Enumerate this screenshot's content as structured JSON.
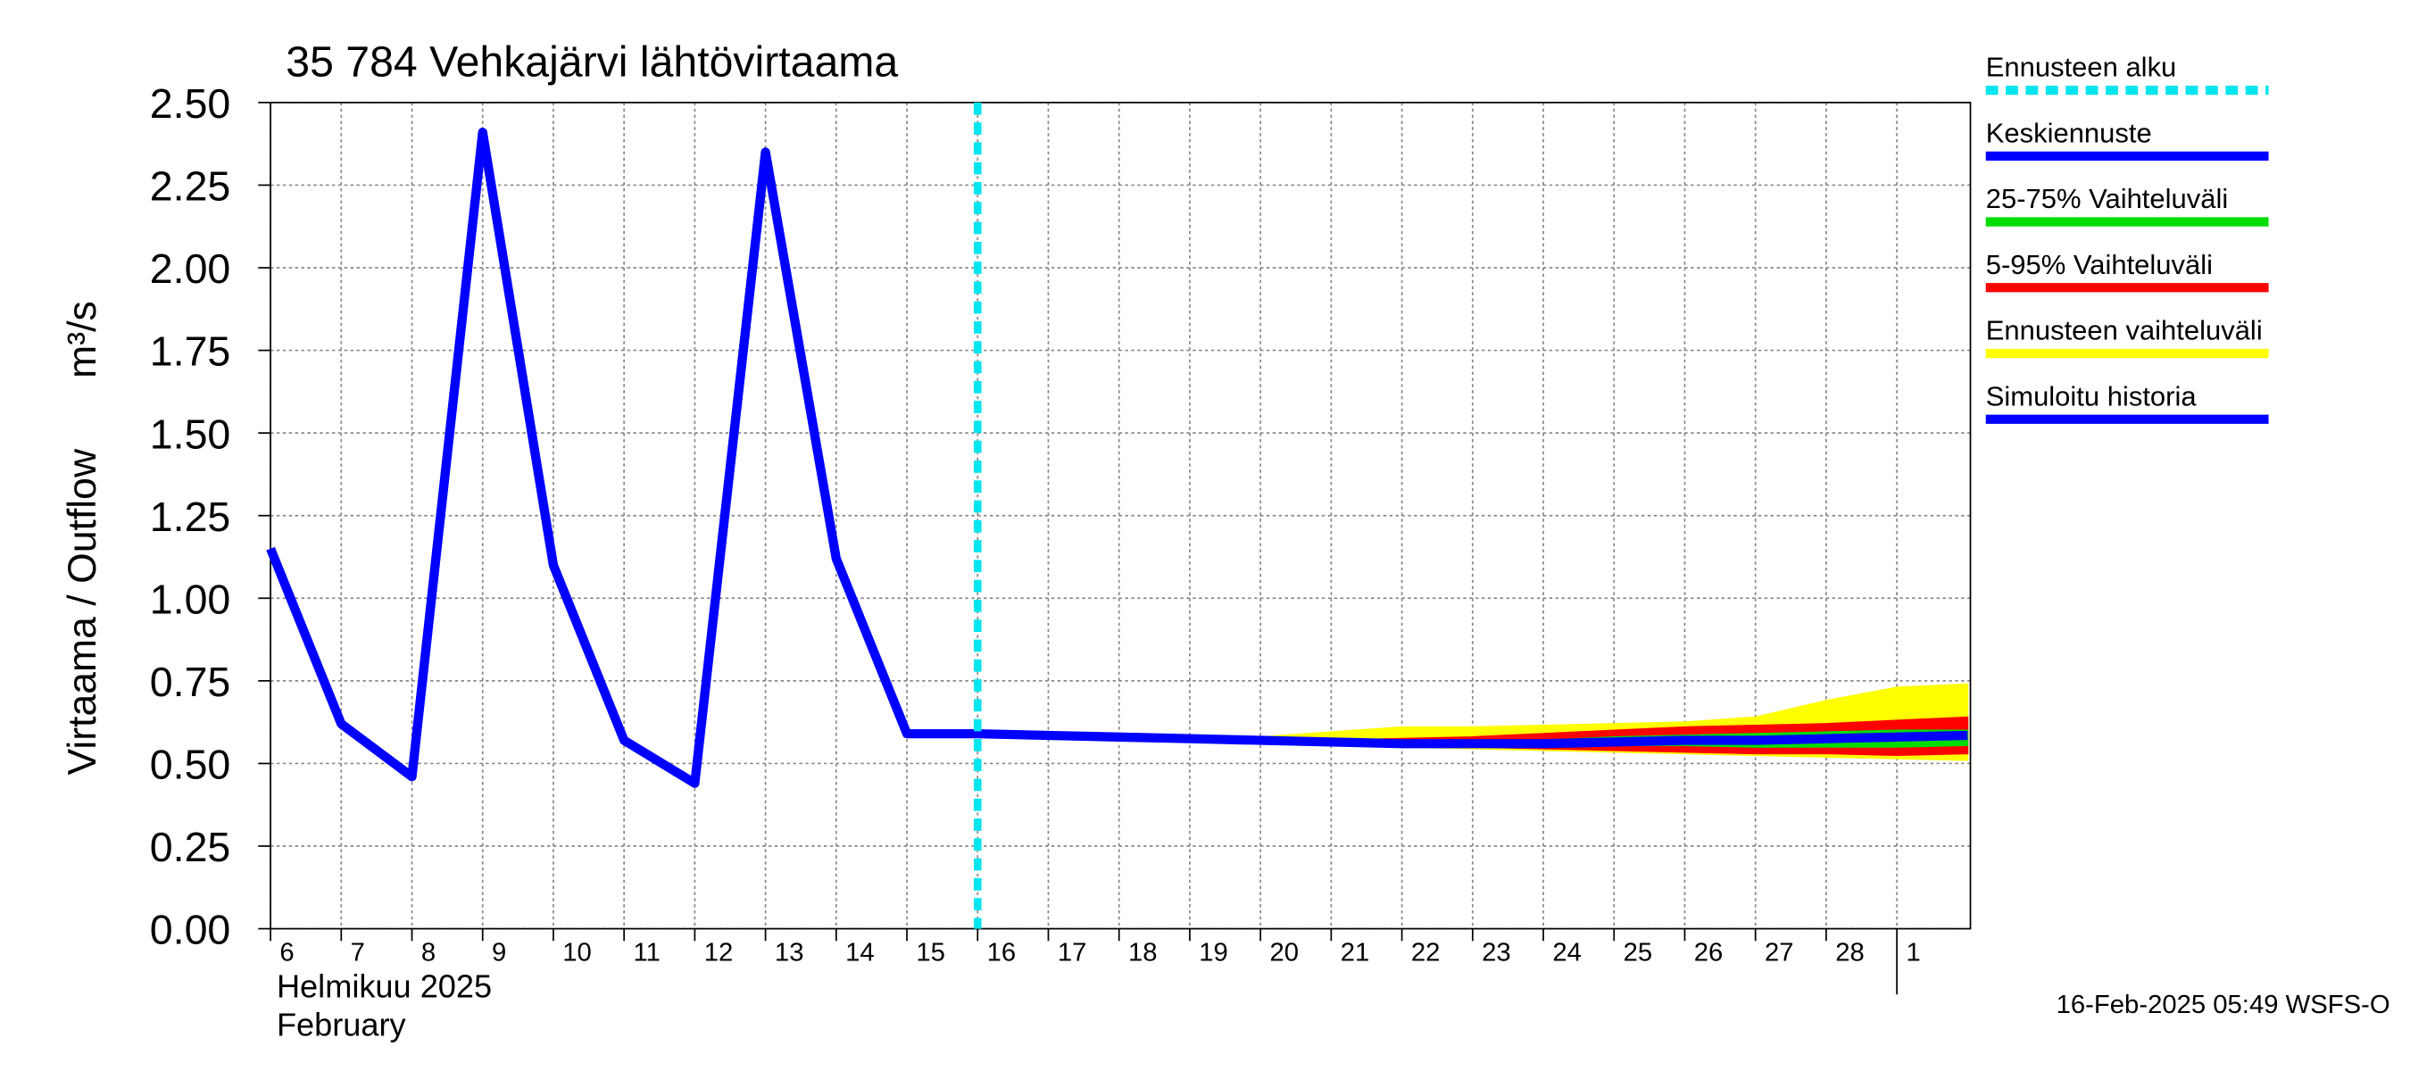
{
  "chart_data": {
    "type": "line",
    "title": "35 784 Vehkajärvi lähtövirtaama",
    "ylabel": "Virtaama / Outflow",
    "yunit": "m³/s",
    "month_label": "Helmikuu  2025",
    "month_label_en": "February",
    "footer": "16-Feb-2025 05:49 WSFS-O",
    "x": [
      "2025-02-06",
      "2025-02-07",
      "2025-02-08",
      "2025-02-09",
      "2025-02-10",
      "2025-02-11",
      "2025-02-12",
      "2025-02-13",
      "2025-02-14",
      "2025-02-15",
      "2025-02-16",
      "2025-02-17",
      "2025-02-18",
      "2025-02-19",
      "2025-02-20",
      "2025-02-21",
      "2025-02-22",
      "2025-02-23",
      "2025-02-24",
      "2025-02-25",
      "2025-02-26",
      "2025-02-27",
      "2025-02-28",
      "2025-03-01",
      "2025-03-02"
    ],
    "xticks": [
      {
        "value": "2025-02-06",
        "label": "6"
      },
      {
        "value": "2025-02-07",
        "label": "7"
      },
      {
        "value": "2025-02-08",
        "label": "8"
      },
      {
        "value": "2025-02-09",
        "label": "9"
      },
      {
        "value": "2025-02-10",
        "label": "10"
      },
      {
        "value": "2025-02-11",
        "label": "11"
      },
      {
        "value": "2025-02-12",
        "label": "12"
      },
      {
        "value": "2025-02-13",
        "label": "13"
      },
      {
        "value": "2025-02-14",
        "label": "14"
      },
      {
        "value": "2025-02-15",
        "label": "15"
      },
      {
        "value": "2025-02-16",
        "label": "16"
      },
      {
        "value": "2025-02-17",
        "label": "17"
      },
      {
        "value": "2025-02-18",
        "label": "18"
      },
      {
        "value": "2025-02-19",
        "label": "19"
      },
      {
        "value": "2025-02-20",
        "label": "20"
      },
      {
        "value": "2025-02-21",
        "label": "21"
      },
      {
        "value": "2025-02-22",
        "label": "22"
      },
      {
        "value": "2025-02-23",
        "label": "23"
      },
      {
        "value": "2025-02-24",
        "label": "24"
      },
      {
        "value": "2025-02-25",
        "label": "25"
      },
      {
        "value": "2025-02-26",
        "label": "26"
      },
      {
        "value": "2025-02-27",
        "label": "27"
      },
      {
        "value": "2025-02-28",
        "label": "28"
      },
      {
        "value": "2025-03-01",
        "label": "1"
      }
    ],
    "ylim": [
      0,
      2.5
    ],
    "yticks": [
      {
        "value": 0,
        "label": "0.00"
      },
      0.25,
      {
        "value": 0.5,
        "label": "0.50"
      },
      0.75,
      {
        "value": 1,
        "label": "1.00"
      },
      1.25,
      {
        "value": 1.5,
        "label": "1.50"
      },
      1.75,
      {
        "value": 2,
        "label": "2.00"
      },
      2.25,
      {
        "value": 2.5,
        "label": "2.50"
      }
    ],
    "grid": true,
    "forecast_start": {
      "name": "Ennusteen alku",
      "x": "2025-02-16",
      "color": "#00e5ee"
    },
    "series": [
      {
        "name": "Keskiennuste",
        "color": "#0000ff",
        "values": [
          null,
          null,
          null,
          null,
          null,
          null,
          null,
          null,
          null,
          null,
          0.59,
          0.585,
          0.58,
          0.575,
          0.57,
          0.565,
          0.56,
          0.56,
          0.56,
          0.565,
          0.57,
          0.57,
          0.575,
          0.58,
          0.585
        ]
      },
      {
        "name": "25-75% Vaihteluväli",
        "color": "#00dd00",
        "band": true,
        "high": [
          null,
          null,
          null,
          null,
          null,
          null,
          null,
          null,
          null,
          null,
          0.59,
          0.585,
          0.58,
          0.575,
          0.57,
          0.565,
          0.565,
          0.565,
          0.57,
          0.58,
          0.585,
          0.59,
          0.595,
          0.6,
          0.6
        ],
        "low": [
          null,
          null,
          null,
          null,
          null,
          null,
          null,
          null,
          null,
          null,
          0.59,
          0.585,
          0.58,
          0.575,
          0.57,
          0.56,
          0.555,
          0.555,
          0.555,
          0.555,
          0.555,
          0.55,
          0.55,
          0.55,
          0.555
        ]
      },
      {
        "name": "5-95% Vaihteluväli",
        "color": "#ff0000",
        "band": true,
        "high": [
          null,
          null,
          null,
          null,
          null,
          null,
          null,
          null,
          null,
          null,
          0.59,
          0.585,
          0.58,
          0.575,
          0.57,
          0.57,
          0.575,
          0.58,
          0.59,
          0.6,
          0.61,
          0.615,
          0.62,
          0.63,
          0.64
        ],
        "low": [
          null,
          null,
          null,
          null,
          null,
          null,
          null,
          null,
          null,
          null,
          0.59,
          0.585,
          0.58,
          0.575,
          0.57,
          0.56,
          0.555,
          0.55,
          0.545,
          0.54,
          0.535,
          0.53,
          0.53,
          0.525,
          0.53
        ]
      },
      {
        "name": "Ennusteen vaihteluväli",
        "color": "#ffff00",
        "band": true,
        "high": [
          null,
          null,
          null,
          null,
          null,
          null,
          null,
          null,
          null,
          null,
          0.59,
          0.585,
          0.58,
          0.575,
          0.58,
          0.595,
          0.61,
          0.61,
          0.615,
          0.62,
          0.625,
          0.64,
          0.69,
          0.73,
          0.74
        ],
        "low": [
          null,
          null,
          null,
          null,
          null,
          null,
          null,
          null,
          null,
          null,
          0.59,
          0.585,
          0.58,
          0.575,
          0.57,
          0.56,
          0.55,
          0.545,
          0.54,
          0.535,
          0.53,
          0.525,
          0.52,
          0.515,
          0.51
        ]
      },
      {
        "name": "Simuloitu historia",
        "color": "#0000ff",
        "values": [
          1.15,
          0.62,
          0.46,
          2.41,
          1.1,
          0.57,
          0.44,
          2.35,
          1.12,
          0.59,
          0.59,
          null,
          null,
          null,
          null,
          null,
          null,
          null,
          null,
          null,
          null,
          null,
          null,
          null,
          null
        ]
      }
    ]
  }
}
